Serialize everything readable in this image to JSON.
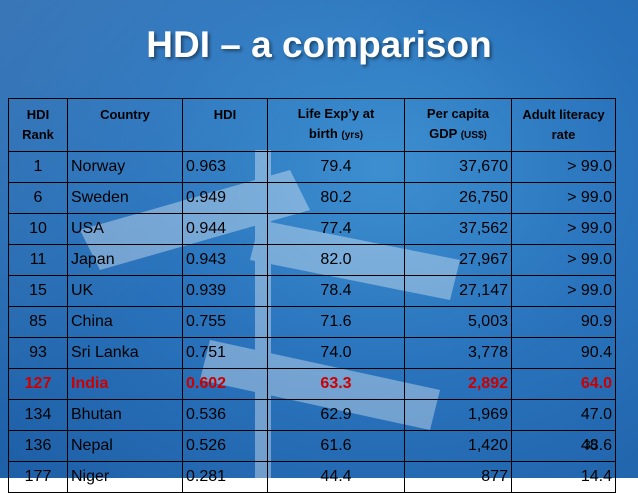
{
  "slide": {
    "title": "HDI – a comparison",
    "page_number": "35"
  },
  "table": {
    "headers": [
      {
        "line1": "HDI",
        "line2": "Rank",
        "unit": ""
      },
      {
        "line1": "Country",
        "line2": "",
        "unit": ""
      },
      {
        "line1": "HDI",
        "line2": "",
        "unit": ""
      },
      {
        "line1": "Life Exp’y at",
        "line2": "birth",
        "unit": "(yrs)"
      },
      {
        "line1": "Per capita",
        "line2": "GDP",
        "unit": "(US$)"
      },
      {
        "line1": "Adult literacy",
        "line2": "rate",
        "unit": ""
      }
    ],
    "rows": [
      [
        "1",
        "Norway",
        "0.963",
        "79.4",
        "37,670",
        "> 99.0"
      ],
      [
        "6",
        "Sweden",
        "0.949",
        "80.2",
        "26,750",
        "> 99.0"
      ],
      [
        "10",
        "USA",
        "0.944",
        "77.4",
        "37,562",
        "> 99.0"
      ],
      [
        "11",
        "Japan",
        "0.943",
        "82.0",
        "27,967",
        "> 99.0"
      ],
      [
        "15",
        "UK",
        "0.939",
        "78.4",
        "27,147",
        "> 99.0"
      ],
      [
        "85",
        "China",
        "0.755",
        "71.6",
        "5,003",
        "90.9"
      ],
      [
        "93",
        "Sri Lanka",
        "0.751",
        "74.0",
        "3,778",
        "90.4"
      ],
      [
        "127",
        "India",
        "0.602",
        "63.3",
        "2,892",
        "64.0"
      ],
      [
        "134",
        "Bhutan",
        "0.536",
        "62.9",
        "1,969",
        "47.0"
      ],
      [
        "136",
        "Nepal",
        "0.526",
        "61.6",
        "1,420",
        "48.6"
      ],
      [
        "177",
        "Niger",
        "0.281",
        "44.4",
        "877",
        "14.4"
      ]
    ],
    "highlight_color": "#cc0000"
  }
}
